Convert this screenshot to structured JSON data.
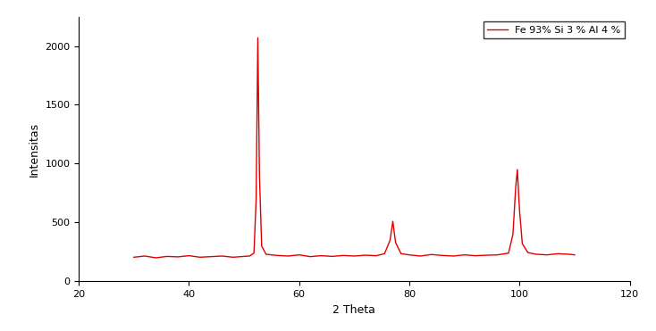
{
  "chart_data": {
    "type": "line",
    "x_label": "2 Theta",
    "y_label": "Intensitas",
    "xlim": [
      20,
      120
    ],
    "xticks": [
      20,
      40,
      60,
      80,
      100,
      120
    ],
    "ylim": [
      0,
      2250
    ],
    "yticks": [
      0,
      500,
      1000,
      1500,
      2000
    ],
    "legend": "upper right",
    "series": [
      {
        "name": "Fe 93% Si 3 % Al 4 %",
        "color": "#e00000",
        "x": [
          30,
          32,
          34,
          36,
          38,
          40,
          42,
          44,
          46,
          48,
          50,
          51,
          51.8,
          52.2,
          52.5,
          52.8,
          53.2,
          54,
          56,
          58,
          60,
          62,
          64,
          66,
          68,
          70,
          72,
          74,
          75.5,
          76.5,
          77,
          77.5,
          78.5,
          80,
          82,
          84,
          86,
          88,
          90,
          92,
          94,
          96,
          98,
          98.8,
          99.3,
          99.6,
          100,
          100.5,
          101.5,
          103,
          105,
          107,
          109,
          110
        ],
        "values": [
          205,
          215,
          200,
          212,
          208,
          218,
          205,
          210,
          215,
          205,
          212,
          215,
          240,
          700,
          2070,
          900,
          300,
          230,
          220,
          215,
          225,
          210,
          218,
          212,
          220,
          215,
          222,
          218,
          235,
          350,
          510,
          330,
          235,
          225,
          215,
          228,
          220,
          215,
          225,
          218,
          222,
          225,
          240,
          400,
          800,
          950,
          600,
          320,
          245,
          230,
          225,
          235,
          230,
          225
        ]
      }
    ]
  }
}
